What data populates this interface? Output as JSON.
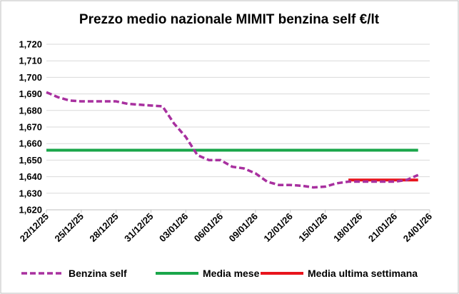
{
  "chart_data": {
    "type": "line",
    "title": "Prezzo medio nazionale MIMIT benzina self €/lt",
    "xlabel": "",
    "ylabel": "",
    "ylim": [
      1.62,
      1.72
    ],
    "yticks": [
      "1,620",
      "1,630",
      "1,640",
      "1,650",
      "1,660",
      "1,670",
      "1,680",
      "1,690",
      "1,700",
      "1,710",
      "1,720"
    ],
    "xlim": [
      "2025-12-22",
      "2026-01-24"
    ],
    "xticks": [
      "22/12/25",
      "25/12/25",
      "28/12/25",
      "31/12/25",
      "03/01/26",
      "06/01/26",
      "09/01/26",
      "12/01/26",
      "15/01/26",
      "18/01/26",
      "21/01/26",
      "24/01/26"
    ],
    "grid": "horizontal",
    "legend_position": "bottom",
    "series": [
      {
        "name": "Benzina self",
        "color": "#a8309f",
        "style": "dashed",
        "points": [
          {
            "x": "2025-12-22",
            "y": 1.691
          },
          {
            "x": "2025-12-23",
            "y": 1.688
          },
          {
            "x": "2025-12-24",
            "y": 1.686
          },
          {
            "x": "2025-12-25",
            "y": 1.6855
          },
          {
            "x": "2025-12-26",
            "y": 1.6855
          },
          {
            "x": "2025-12-27",
            "y": 1.6855
          },
          {
            "x": "2025-12-28",
            "y": 1.6855
          },
          {
            "x": "2025-12-29",
            "y": 1.684
          },
          {
            "x": "2025-12-30",
            "y": 1.6835
          },
          {
            "x": "2025-12-31",
            "y": 1.683
          },
          {
            "x": "2026-01-01",
            "y": 1.6825
          },
          {
            "x": "2026-01-02",
            "y": 1.672
          },
          {
            "x": "2026-01-03",
            "y": 1.664
          },
          {
            "x": "2026-01-04",
            "y": 1.653
          },
          {
            "x": "2026-01-05",
            "y": 1.65
          },
          {
            "x": "2026-01-06",
            "y": 1.65
          },
          {
            "x": "2026-01-07",
            "y": 1.646
          },
          {
            "x": "2026-01-08",
            "y": 1.645
          },
          {
            "x": "2026-01-09",
            "y": 1.642
          },
          {
            "x": "2026-01-10",
            "y": 1.637
          },
          {
            "x": "2026-01-11",
            "y": 1.635
          },
          {
            "x": "2026-01-12",
            "y": 1.635
          },
          {
            "x": "2026-01-13",
            "y": 1.6345
          },
          {
            "x": "2026-01-14",
            "y": 1.6335
          },
          {
            "x": "2026-01-15",
            "y": 1.634
          },
          {
            "x": "2026-01-16",
            "y": 1.636
          },
          {
            "x": "2026-01-17",
            "y": 1.637
          },
          {
            "x": "2026-01-18",
            "y": 1.637
          },
          {
            "x": "2026-01-19",
            "y": 1.637
          },
          {
            "x": "2026-01-20",
            "y": 1.637
          },
          {
            "x": "2026-01-21",
            "y": 1.637
          },
          {
            "x": "2026-01-22",
            "y": 1.638
          },
          {
            "x": "2026-01-23",
            "y": 1.641
          }
        ]
      },
      {
        "name": "Media mese",
        "color": "#1aa64a",
        "style": "solid",
        "points": [
          {
            "x": "2025-12-22",
            "y": 1.656
          },
          {
            "x": "2026-01-23",
            "y": 1.656
          }
        ]
      },
      {
        "name": "Media ultima settimana",
        "color": "#e8141c",
        "style": "solid",
        "points": [
          {
            "x": "2026-01-17",
            "y": 1.638
          },
          {
            "x": "2026-01-23",
            "y": 1.638
          }
        ]
      }
    ]
  }
}
